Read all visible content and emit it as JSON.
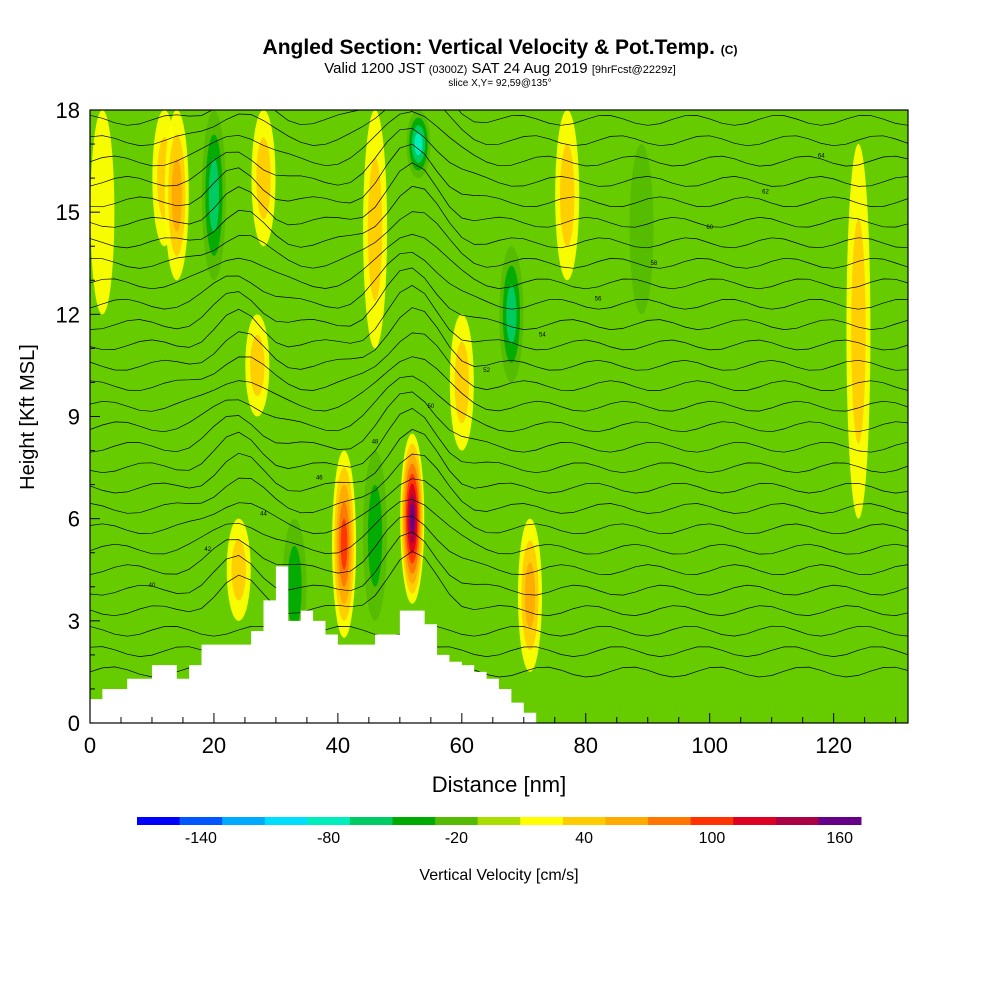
{
  "header": {
    "title": "Angled Section: Vertical Velocity & Pot.Temp.",
    "title_tag": "(C)",
    "valid_main": "Valid 1200 JST",
    "valid_zulu": "(0300Z)",
    "valid_date": "SAT 24 Aug 2019",
    "forecast": "[9hrFcst@2229z]",
    "slice": "slice X,Y= 92,59@135°"
  },
  "chart_data": {
    "type": "heatmap",
    "xlabel": "Distance [nm]",
    "ylabel": "Height [Kft MSL]",
    "xlim": [
      0,
      132
    ],
    "ylim": [
      0,
      18
    ],
    "x_ticks": [
      0,
      20,
      40,
      60,
      80,
      100,
      120
    ],
    "y_ticks": [
      0,
      3,
      6,
      9,
      12,
      15,
      18
    ],
    "grid": false,
    "background_color": "#66cc00",
    "colorbar": {
      "label": "Vertical Velocity [cm/s]",
      "tick_labels": [
        "-140",
        "-80",
        "-20",
        "40",
        "100",
        "160"
      ],
      "colors": [
        "#0000ff",
        "#0055ff",
        "#00aaff",
        "#00ddff",
        "#00eebb",
        "#00cc66",
        "#00aa00",
        "#55bb00",
        "#aadd00",
        "#ffff00",
        "#ffcc00",
        "#ffaa00",
        "#ff7700",
        "#ff3300",
        "#dd0022",
        "#aa0044",
        "#660088"
      ]
    },
    "velocity_features": [
      {
        "x": 2,
        "y0": 12,
        "y1": 18,
        "value": 20
      },
      {
        "x": 12,
        "y0": 14,
        "y1": 18,
        "value": 40
      },
      {
        "x": 14,
        "y0": 13,
        "y1": 18,
        "value": 50
      },
      {
        "x": 20,
        "y0": 13,
        "y1": 18,
        "value": -60
      },
      {
        "x": 24,
        "y0": 3,
        "y1": 6,
        "value": 40
      },
      {
        "x": 27,
        "y0": 9,
        "y1": 12,
        "value": 40
      },
      {
        "x": 28,
        "y0": 14,
        "y1": 18,
        "value": 40
      },
      {
        "x": 33,
        "y0": 2,
        "y1": 6,
        "value": -40
      },
      {
        "x": 41,
        "y0": 2.5,
        "y1": 8,
        "value": 100
      },
      {
        "x": 46,
        "y0": 3,
        "y1": 8,
        "value": -40
      },
      {
        "x": 46,
        "y0": 11,
        "y1": 18,
        "value": 40
      },
      {
        "x": 52,
        "y0": 3.5,
        "y1": 8.5,
        "value": 160
      },
      {
        "x": 53,
        "y0": 16,
        "y1": 18,
        "value": -80
      },
      {
        "x": 60,
        "y0": 8,
        "y1": 12,
        "value": 40
      },
      {
        "x": 68,
        "y0": 10,
        "y1": 14,
        "value": -60
      },
      {
        "x": 71,
        "y0": 1.5,
        "y1": 6,
        "value": 60
      },
      {
        "x": 77,
        "y0": 13,
        "y1": 18,
        "value": 40
      },
      {
        "x": 89,
        "y0": 12,
        "y1": 17,
        "value": -20
      },
      {
        "x": 124,
        "y0": 6,
        "y1": 17,
        "value": 30
      }
    ],
    "terrain": {
      "x": [
        0,
        2,
        6,
        10,
        14,
        16,
        18,
        20,
        22,
        24,
        26,
        28,
        30,
        32,
        34,
        36,
        38,
        40,
        42,
        44,
        46,
        48,
        50,
        52,
        54,
        56,
        58,
        60,
        62,
        64,
        66,
        68,
        70,
        72
      ],
      "height": [
        0.7,
        1,
        1.3,
        1.7,
        1.3,
        1.7,
        2.3,
        2.3,
        2.3,
        2.3,
        2.7,
        3.6,
        4.6,
        3.0,
        3.3,
        3.0,
        2.6,
        2.3,
        2.3,
        2.3,
        2.6,
        2.6,
        3.3,
        3.3,
        2.9,
        2.0,
        1.8,
        1.7,
        1.5,
        1.3,
        1.0,
        0.6,
        0.3,
        0.0
      ]
    },
    "isotherm_labels": [
      "40",
      "42",
      "44",
      "46",
      "48",
      "50",
      "52",
      "54",
      "56",
      "58",
      "60",
      "62",
      "64"
    ]
  }
}
